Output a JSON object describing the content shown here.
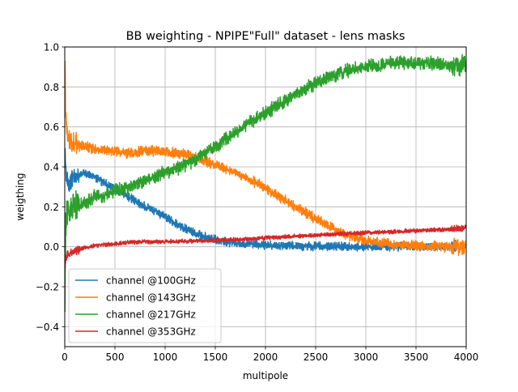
{
  "chart_data": {
    "type": "line",
    "title": "BB weighting - NPIPE\"Full\" dataset - lens masks",
    "xlabel": "multipole",
    "ylabel": "weigthing",
    "xlim": [
      0,
      4000
    ],
    "ylim": [
      -0.5,
      1.0
    ],
    "xticks": [
      0,
      500,
      1000,
      1500,
      2000,
      2500,
      3000,
      3500,
      4000
    ],
    "yticks": [
      -0.4,
      -0.2,
      0.0,
      0.2,
      0.4,
      0.6,
      0.8,
      1.0
    ],
    "xtick_labels": [
      "0",
      "500",
      "1000",
      "1500",
      "2000",
      "2500",
      "3000",
      "3500",
      "4000"
    ],
    "ytick_labels": [
      "−0.4",
      "−0.2",
      "0.0",
      "0.2",
      "0.4",
      "0.6",
      "0.8",
      "1.0"
    ],
    "grid": true,
    "legend_position": "lower-left",
    "series": [
      {
        "name": "channel @100GHz",
        "color": "#1f77b4",
        "x": [
          2,
          10,
          30,
          60,
          100,
          150,
          200,
          300,
          400,
          500,
          600,
          700,
          800,
          900,
          1000,
          1100,
          1200,
          1300,
          1400,
          1500,
          1600,
          1800,
          2000,
          2500,
          3000,
          3500,
          3900
        ],
        "y": [
          0.5,
          0.38,
          0.32,
          0.33,
          0.35,
          0.36,
          0.37,
          0.35,
          0.32,
          0.29,
          0.26,
          0.23,
          0.2,
          0.18,
          0.15,
          0.12,
          0.09,
          0.07,
          0.05,
          0.035,
          0.025,
          0.015,
          0.008,
          0.003,
          0.001,
          0.0,
          0.0
        ],
        "noise": 0.025
      },
      {
        "name": "channel @143GHz",
        "color": "#ff7f0e",
        "x": [
          2,
          10,
          30,
          60,
          100,
          200,
          300,
          400,
          500,
          600,
          700,
          800,
          900,
          1000,
          1100,
          1200,
          1300,
          1400,
          1500,
          1600,
          1700,
          1800,
          1900,
          2000,
          2100,
          2200,
          2300,
          2400,
          2500,
          2600,
          2700,
          2800,
          2900,
          3000,
          3200,
          3400,
          3600,
          3800,
          4000
        ],
        "y": [
          0.95,
          0.62,
          0.55,
          0.53,
          0.52,
          0.5,
          0.49,
          0.48,
          0.48,
          0.47,
          0.47,
          0.48,
          0.48,
          0.48,
          0.47,
          0.46,
          0.45,
          0.43,
          0.41,
          0.39,
          0.37,
          0.35,
          0.32,
          0.29,
          0.26,
          0.23,
          0.2,
          0.17,
          0.14,
          0.11,
          0.085,
          0.06,
          0.045,
          0.03,
          0.015,
          0.007,
          0.003,
          0.001,
          0.0
        ],
        "noise": 0.03
      },
      {
        "name": "channel @217GHz",
        "color": "#2ca02c",
        "x": [
          2,
          10,
          30,
          60,
          100,
          200,
          300,
          400,
          500,
          600,
          700,
          800,
          900,
          1000,
          1100,
          1200,
          1300,
          1400,
          1500,
          1600,
          1700,
          1800,
          1900,
          2000,
          2100,
          2200,
          2300,
          2400,
          2500,
          2600,
          2700,
          2800,
          2900,
          3000,
          3100,
          3200,
          3300,
          3400,
          3500,
          3600,
          3700,
          3800,
          3900,
          4000
        ],
        "y": [
          -0.3,
          0.12,
          0.17,
          0.18,
          0.19,
          0.22,
          0.25,
          0.26,
          0.28,
          0.29,
          0.31,
          0.33,
          0.35,
          0.37,
          0.39,
          0.41,
          0.44,
          0.47,
          0.5,
          0.54,
          0.57,
          0.61,
          0.64,
          0.67,
          0.7,
          0.73,
          0.76,
          0.79,
          0.82,
          0.84,
          0.86,
          0.88,
          0.89,
          0.9,
          0.91,
          0.915,
          0.92,
          0.92,
          0.92,
          0.92,
          0.915,
          0.91,
          0.91,
          0.905
        ],
        "noise": 0.04
      },
      {
        "name": "channel @353GHz",
        "color": "#d62728",
        "x": [
          2,
          10,
          30,
          60,
          100,
          200,
          300,
          400,
          500,
          600,
          800,
          1000,
          1200,
          1500,
          1800,
          2000,
          2500,
          3000,
          3500,
          3900,
          4000
        ],
        "y": [
          -0.1,
          -0.06,
          -0.04,
          -0.03,
          -0.02,
          -0.005,
          0.005,
          0.01,
          0.015,
          0.02,
          0.025,
          0.025,
          0.028,
          0.032,
          0.038,
          0.045,
          0.058,
          0.07,
          0.08,
          0.09,
          0.095
        ],
        "noise": 0.012
      }
    ]
  }
}
